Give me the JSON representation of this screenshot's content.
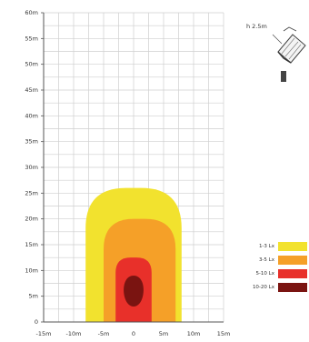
{
  "chart_data": {
    "type": "heatmap",
    "title": "",
    "xlabel": "",
    "ylabel": "",
    "x_ticks": [
      "-15m",
      "-10m",
      "-5m",
      "0",
      "5m",
      "10m",
      "15m"
    ],
    "y_ticks": [
      "0",
      "5m",
      "10m",
      "15m",
      "20m",
      "25m",
      "30m",
      "35m",
      "40m",
      "45m",
      "50m",
      "55m",
      "60m"
    ],
    "xlim": [
      -15,
      15
    ],
    "ylim": [
      0,
      60
    ],
    "grid": true,
    "legend_placement": "bottom-right",
    "zones": [
      {
        "name": "1-3 Lx",
        "color": "#F2E22E",
        "x_extent": [
          -8,
          8
        ],
        "y_extent": [
          0,
          26
        ]
      },
      {
        "name": "3-5 Lx",
        "color": "#F5A028",
        "x_extent": [
          -5,
          7
        ],
        "y_extent": [
          0,
          20
        ]
      },
      {
        "name": "5-10 Lx",
        "color": "#E8302A",
        "x_extent": [
          -3,
          3
        ],
        "y_extent": [
          0,
          12.5
        ]
      },
      {
        "name": "10-20 Lx",
        "color": "#7A1411",
        "x_extent": [
          -2,
          2
        ],
        "y_extent": [
          3,
          9
        ]
      }
    ],
    "annotation": "h 2.5m"
  },
  "legend": [
    {
      "label": "1-3 Lx",
      "color": "#F2E22E"
    },
    {
      "label": "3-5 Lx",
      "color": "#F5A028"
    },
    {
      "label": "5-10 Lx",
      "color": "#E8302A"
    },
    {
      "label": "10-20 Lx",
      "color": "#7A1411"
    }
  ],
  "inset": {
    "label": "h 2.5m",
    "icon": "lamp-icon"
  }
}
